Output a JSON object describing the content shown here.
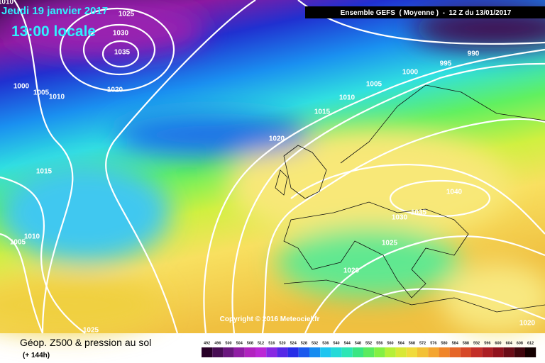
{
  "header": {
    "date": "Jeudi 19 janvier 2017",
    "time": "13:00 locale",
    "run": "Ensemble GEFS  ( Moyenne )  -  12 Z du 13/01/2017"
  },
  "copyright": "Copyright © 2016 Meteociel.fr",
  "footer": {
    "title": "Géop. Z500 & pression au sol",
    "lead": "(+ 144h)"
  },
  "isobar_labels": [
    "1010",
    "1025",
    "1030",
    "1035",
    "1020",
    "1000",
    "1005",
    "1010",
    "1015",
    "1005",
    "1010",
    "1025",
    "995",
    "990",
    "1000",
    "1005",
    "1010",
    "1015",
    "1020",
    "1040",
    "1035",
    "1030",
    "1025",
    "1020",
    "1020"
  ],
  "legend": [
    492,
    496,
    500,
    504,
    508,
    512,
    516,
    520,
    524,
    528,
    532,
    536,
    540,
    544,
    548,
    552,
    556,
    560,
    564,
    568,
    572,
    576,
    580,
    584,
    588,
    592,
    596,
    600,
    604,
    608,
    612
  ]
}
